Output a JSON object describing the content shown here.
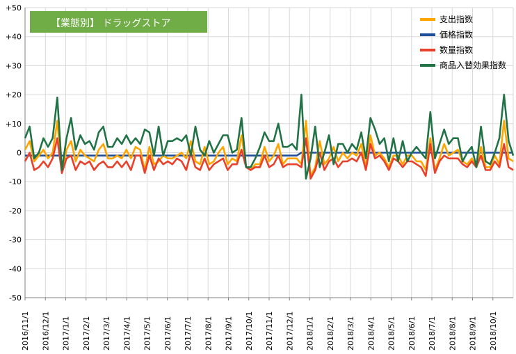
{
  "chart_data": {
    "type": "line",
    "title": "【業態別】 ドラッグストア",
    "ylim": [
      -50,
      50
    ],
    "yticks": [
      "+50",
      "+40",
      "+30",
      "+20",
      "+10",
      "0",
      "-10",
      "-20",
      "-30",
      "-40",
      "-50"
    ],
    "xtick_labels": [
      "2016/11/1",
      "2016/12/1",
      "2017/1/1",
      "2017/2/1",
      "2017/3/1",
      "2017/4/1",
      "2017/5/1",
      "2017/6/1",
      "2017/7/1",
      "2017/8/1",
      "2017/9/1",
      "2017/10/1",
      "2017/11/1",
      "2017/12/1",
      "2018/1/1",
      "2018/2/1",
      "2018/3/1",
      "2018/4/1",
      "2018/5/1",
      "2018/6/1",
      "2018/7/1",
      "2018/8/1",
      "2018/9/1",
      "2018/10/1"
    ],
    "grid": true,
    "legend_position": "top-right",
    "series": [
      {
        "name": "支出指数",
        "color": "#ffa500",
        "values": [
          1,
          4,
          -3,
          -1,
          1,
          -2,
          0,
          11,
          -7,
          1,
          4,
          -3,
          1,
          -1,
          -2,
          -3,
          1,
          3,
          -2,
          -2,
          -1,
          -2,
          1,
          -2,
          2,
          1,
          -6,
          2,
          -4,
          -3,
          -1,
          -2,
          -2,
          -1,
          0,
          -2,
          4,
          -3,
          -4,
          2,
          -4,
          -3,
          0,
          2,
          -4,
          -2,
          -3,
          6,
          -5,
          -6,
          -4,
          -4,
          2,
          -3,
          -1,
          3,
          -4,
          -2,
          -2,
          -2,
          -4,
          11,
          -8,
          -5,
          4,
          -4,
          -2,
          2,
          -3,
          0,
          -2,
          0,
          -1,
          3,
          -5,
          6,
          -1,
          0,
          -2,
          -5,
          -1,
          -1,
          -4,
          -1,
          -1,
          -3,
          -3,
          -6,
          5,
          -6,
          -2,
          3,
          -1,
          0,
          1,
          -3,
          -4,
          -2,
          -5,
          2,
          -5,
          -5,
          -1,
          -4,
          11,
          -2,
          -3
        ]
      },
      {
        "name": "価格指数",
        "color": "#1f4e9a",
        "values": [
          -1,
          -1,
          -1,
          -1,
          -1,
          -1,
          -1,
          -1,
          -1,
          -1,
          -1,
          -1,
          -1,
          -1,
          -1,
          -1,
          -1,
          -1,
          -1,
          -1,
          -1,
          -1,
          -1,
          -1,
          -1,
          -1,
          -1,
          -1,
          -1,
          -1,
          -1,
          -1,
          -1,
          -1,
          -1,
          -1,
          -1,
          -1,
          -1,
          -1,
          -1,
          -1,
          -1,
          -1,
          -1,
          -1,
          -1,
          -1,
          -1,
          -1,
          -1,
          -1,
          -1,
          -1,
          -1,
          -1,
          -1,
          -1,
          -1,
          -1,
          0,
          0,
          0,
          0,
          0,
          0,
          0,
          0,
          0,
          0,
          0,
          0,
          0,
          0,
          0,
          0,
          0,
          0,
          0,
          0,
          0,
          0,
          0,
          0,
          0,
          0,
          0,
          0,
          0,
          0,
          0,
          0,
          0,
          0,
          0,
          0,
          0,
          0,
          0,
          0,
          0,
          0,
          0,
          0,
          0,
          0,
          0
        ]
      },
      {
        "name": "数量指数",
        "color": "#e8402a",
        "values": [
          -3,
          0,
          -6,
          -5,
          -3,
          -5,
          -2,
          5,
          -7,
          -2,
          -1,
          -6,
          -3,
          -4,
          -3,
          -6,
          -4,
          -3,
          -5,
          -5,
          -3,
          -5,
          -3,
          -6,
          -1,
          -1,
          -7,
          -1,
          -6,
          -2,
          -4,
          -3,
          -4,
          -2,
          -3,
          -6,
          0,
          -5,
          -6,
          -2,
          -6,
          -4,
          -3,
          -2,
          -6,
          -4,
          -4,
          1,
          -5,
          -6,
          -5,
          -5,
          -1,
          -5,
          -4,
          -1,
          -5,
          -4,
          -4,
          -4,
          -5,
          5,
          -9,
          -6,
          0,
          -6,
          -3,
          -2,
          -5,
          -3,
          -3,
          -2,
          -3,
          0,
          -6,
          3,
          -2,
          -1,
          -3,
          -6,
          -2,
          -3,
          -5,
          -3,
          -3,
          -4,
          -5,
          -8,
          3,
          -7,
          -3,
          -1,
          -2,
          -2,
          -2,
          -4,
          -5,
          -3,
          -5,
          -1,
          -6,
          -6,
          -3,
          -5,
          3,
          -5,
          -6
        ]
      },
      {
        "name": "商品入替効果指数",
        "color": "#217346",
        "values": [
          5,
          9,
          -2,
          0,
          5,
          2,
          5,
          19,
          -6,
          5,
          12,
          1,
          6,
          3,
          4,
          1,
          7,
          9,
          2,
          2,
          5,
          3,
          6,
          3,
          5,
          3,
          8,
          7,
          -1,
          9,
          -1,
          4,
          4,
          5,
          4,
          6,
          -1,
          9,
          1,
          -1,
          4,
          0,
          3,
          6,
          6,
          0,
          1,
          12,
          -5,
          -5,
          -2,
          2,
          7,
          4,
          4,
          10,
          2,
          2,
          3,
          1,
          20,
          -9,
          -2,
          9,
          -5,
          0,
          6,
          -4,
          3,
          3,
          0,
          3,
          1,
          7,
          -2,
          12,
          8,
          3,
          5,
          -3,
          5,
          -3,
          4,
          -3,
          0,
          2,
          0,
          -2,
          14,
          -2,
          3,
          8,
          3,
          5,
          5,
          -3,
          0,
          2,
          -5,
          9,
          -3,
          -4,
          0,
          5,
          20,
          4,
          -1
        ]
      }
    ]
  }
}
